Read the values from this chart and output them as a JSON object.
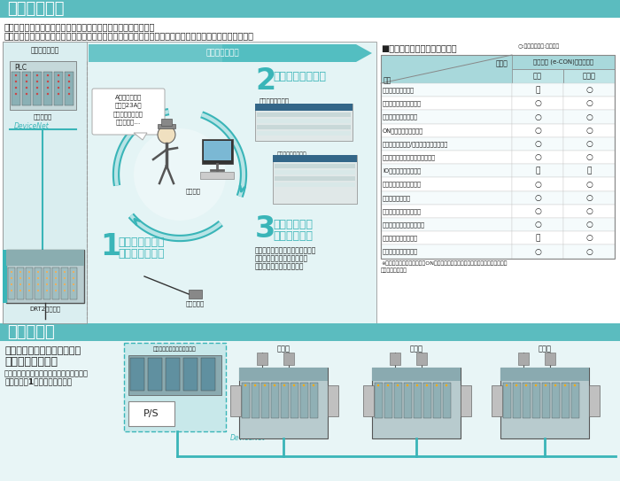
{
  "title_smart": "スマート機能",
  "title_haiksen": "「省」配線",
  "body_text_line1": "「保全」リモートメンテナンスに貢献するスマート機能を搭載。",
  "body_text_line2": "生産性にかかわる制御系システムに影響を与えず、保全系システムとして、多彩なデータ収集が可能です。",
  "haiksen_text1": "センサなど入力接続機器用の",
  "haiksen_text2": "電源配線が不要。",
  "haiksen_text3": "通信用、スレーブ用、および入力機器用の",
  "haiksen_text4": "電源配線を1系統で配線可能。",
  "table_title": "■使用できる各機能の有無一覧",
  "table_legend": "○:機能あり、－:機能なし",
  "col_header1": "コネクタ (e-CON)ターミナル",
  "col_sub1": "入力",
  "col_sub2": "入出力",
  "type_label": "タイプ",
  "func_label": "機能",
  "rows": [
    [
      "動作時間モニタ機能",
      "－",
      "○"
    ],
    [
      "接点動作回数モニタ機能",
      "○",
      "○"
    ],
    [
      "ユニット通電時間機能",
      "○",
      "○"
    ],
    [
      "ON積算時間モニタ機能",
      "○",
      "○"
    ],
    [
      "スレーブコメント/接続機器コメント機能",
      "○",
      "○"
    ],
    [
      "ネットワーク電源電圧モニタ機能",
      "○",
      "○"
    ],
    [
      "IO電源状態モニタ機能",
      "－",
      "－"
    ],
    [
      "通信異常履歴モニタ機能",
      "○",
      "○"
    ],
    [
      "入力フィルタ機能",
      "○",
      "○"
    ],
    [
      "センサ突入電流対応機能",
      "○",
      "○"
    ],
    [
      "センサ電源過電流保護機能",
      "○",
      "○"
    ],
    [
      "外部異常回路保護機能",
      "－",
      "○"
    ],
    [
      "通信速度自動認識機能",
      "○",
      "○"
    ]
  ],
  "footnote_line1": "※接点動作回数モニタ機能とON積算時間モニタ機能は同時に使用できませんので",
  "footnote_line2": "ご注意ください。",
  "seigyo": "制御系システム",
  "hozen": "保全系システム",
  "plc_label": "PLC",
  "io_label": "制御入出力",
  "devicenet1": "DeviceNet",
  "step1_num": "1",
  "step1_line1": "スレーブ自体が",
  "step1_line2": "機械動作を監視",
  "step2_num": "2",
  "step2_text": "わかりやすく表示",
  "step3_num": "3",
  "step3_line1": "メンテナンス",
  "step3_line2": "作業の早期化",
  "balloon_text": "A検査ラインの\nセンサ23Aの\nメンテをしなきゃ\nいけないな…",
  "hozen_info": "保全情報",
  "sensor_label": "センサなど",
  "drt2_label": "DRT2シリーズ",
  "configurator": "コンフィグレータ",
  "monitor_label": "接点動作回数モニタ",
  "step3_desc1": "スレーブ自体にコメントを持てる",
  "step3_desc2": "ため、異常場所や異常機器の",
  "step3_desc3": "特定がすばやくできます。",
  "ps_label": "P/S",
  "devicenet2": "DeviceNet",
  "prog_label": "プログラマブルコントローラ",
  "sensor_top": "センサ",
  "colors": {
    "teal_header": "#5bbcbf",
    "teal_arrow": "#3ab5b8",
    "teal_light": "#b8e4e6",
    "teal_bg": "#d6f0f1",
    "diagram_bg": "#e4f4f5",
    "left_panel_bg": "#daeef0",
    "white": "#ffffff",
    "text_dark": "#222222",
    "text_med": "#444444",
    "border": "#888888",
    "table_header_bg": "#a8d8db",
    "table_sub_bg": "#c0e5e7",
    "row_even": "#f5fbfc",
    "row_odd": "#ffffff",
    "teal_step": "#3ab5b8",
    "monitor_bg": "#e8e8e8",
    "drt_bg": "#c0d4d6",
    "drt_module": "#9abcbe"
  }
}
